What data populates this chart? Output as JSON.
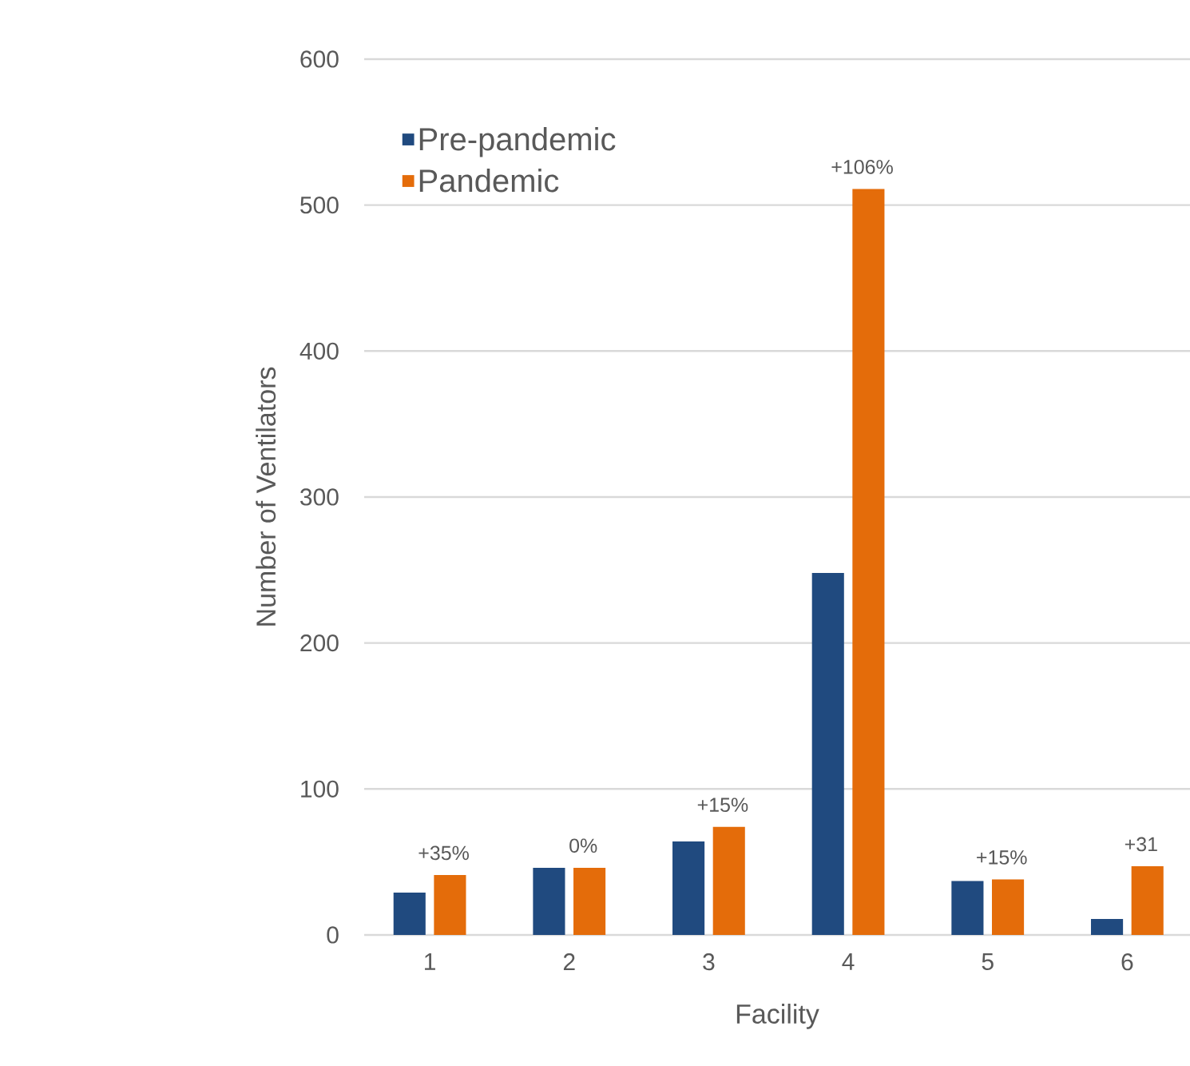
{
  "chart_data": {
    "type": "bar",
    "xlabel": "Facility",
    "ylabel": "Number of Ventilators",
    "categories": [
      "1",
      "2",
      "3",
      "4",
      "5",
      "6"
    ],
    "series": [
      {
        "name": "Pre-pandemic",
        "color": "#204a7f",
        "values": [
          29,
          46,
          64,
          248,
          37,
          11
        ]
      },
      {
        "name": "Pandemic",
        "color": "#e46c0a",
        "values": [
          41,
          46,
          74,
          511,
          38,
          47
        ]
      }
    ],
    "annotations": [
      {
        "text": "+35%",
        "x": "1",
        "y": 41
      },
      {
        "text": "0%",
        "x": "2",
        "y": 46
      },
      {
        "text": "+15%",
        "x": "3",
        "y": 74
      },
      {
        "text": "+106%",
        "x": "4",
        "y": 511
      },
      {
        "text": "+15%",
        "x": "5",
        "y": 38
      },
      {
        "text": "+31",
        "x": "6",
        "y": 47
      }
    ],
    "ylim": [
      0,
      600
    ],
    "yticks": [
      0,
      100,
      200,
      300,
      400,
      500,
      600
    ],
    "grid": "y",
    "legend": "top left"
  }
}
